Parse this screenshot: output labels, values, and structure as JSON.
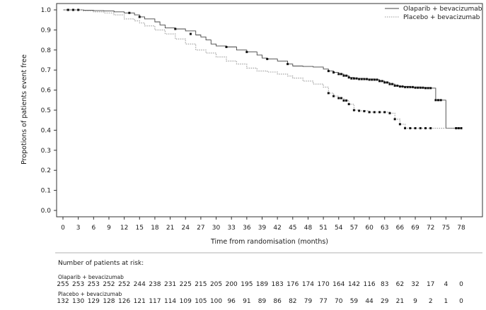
{
  "chart_data": {
    "type": "line",
    "subtype": "kaplan-meier",
    "title": "",
    "xlabel": "Time from randomisation (months)",
    "ylabel": "Propotions of patients event free",
    "xlim": [
      0,
      81
    ],
    "ylim": [
      0,
      1.0
    ],
    "x_ticks": [
      0,
      3,
      6,
      9,
      12,
      15,
      18,
      21,
      24,
      27,
      30,
      33,
      36,
      39,
      42,
      45,
      48,
      51,
      54,
      57,
      60,
      63,
      66,
      69,
      72,
      75,
      78
    ],
    "y_ticks": [
      "0.0",
      "0.1",
      "0.2",
      "0.3",
      "0.4",
      "0.5",
      "0.6",
      "0.7",
      "0.8",
      "0.9",
      "1.0"
    ],
    "legend_position": "top-right",
    "series": [
      {
        "name": "Olaparib + bevacizumab",
        "style": "solid",
        "color": "#444444",
        "points": [
          [
            0,
            1.0
          ],
          [
            2,
            1.0
          ],
          [
            4,
            0.998
          ],
          [
            6,
            0.996
          ],
          [
            8,
            0.995
          ],
          [
            10,
            0.99
          ],
          [
            12,
            0.985
          ],
          [
            14,
            0.975
          ],
          [
            15,
            0.965
          ],
          [
            16,
            0.955
          ],
          [
            18,
            0.94
          ],
          [
            19,
            0.925
          ],
          [
            20,
            0.91
          ],
          [
            22,
            0.905
          ],
          [
            24,
            0.895
          ],
          [
            26,
            0.875
          ],
          [
            27,
            0.865
          ],
          [
            28,
            0.85
          ],
          [
            29,
            0.83
          ],
          [
            30,
            0.82
          ],
          [
            32,
            0.815
          ],
          [
            34,
            0.8
          ],
          [
            36,
            0.79
          ],
          [
            38,
            0.775
          ],
          [
            39,
            0.76
          ],
          [
            40,
            0.755
          ],
          [
            42,
            0.745
          ],
          [
            44,
            0.73
          ],
          [
            45,
            0.72
          ],
          [
            47,
            0.718
          ],
          [
            49,
            0.715
          ],
          [
            51,
            0.705
          ],
          [
            52,
            0.695
          ],
          [
            53,
            0.688
          ],
          [
            54,
            0.68
          ],
          [
            55,
            0.672
          ],
          [
            56,
            0.663
          ],
          [
            57,
            0.658
          ],
          [
            59,
            0.655
          ],
          [
            61,
            0.652
          ],
          [
            62,
            0.645
          ],
          [
            63,
            0.638
          ],
          [
            64,
            0.63
          ],
          [
            65,
            0.622
          ],
          [
            66,
            0.618
          ],
          [
            68,
            0.615
          ],
          [
            70,
            0.612
          ],
          [
            72,
            0.61
          ],
          [
            73,
            0.55
          ],
          [
            74,
            0.55
          ],
          [
            75,
            0.41
          ],
          [
            77,
            0.41
          ],
          [
            78,
            0.41
          ]
        ],
        "censor_marks": [
          [
            1,
            1.0
          ],
          [
            2,
            1.0
          ],
          [
            3,
            1.0
          ],
          [
            13,
            0.985
          ],
          [
            15,
            0.965
          ],
          [
            22,
            0.905
          ],
          [
            25,
            0.88
          ],
          [
            32,
            0.815
          ],
          [
            36,
            0.79
          ],
          [
            40,
            0.755
          ],
          [
            44,
            0.73
          ],
          [
            52,
            0.695
          ],
          [
            53,
            0.688
          ],
          [
            54,
            0.68
          ],
          [
            54.5,
            0.68
          ],
          [
            55,
            0.672
          ],
          [
            55.5,
            0.672
          ],
          [
            56,
            0.663
          ],
          [
            56.5,
            0.658
          ],
          [
            57,
            0.658
          ],
          [
            57.5,
            0.658
          ],
          [
            58,
            0.655
          ],
          [
            58.5,
            0.655
          ],
          [
            59,
            0.655
          ],
          [
            59.5,
            0.655
          ],
          [
            60,
            0.652
          ],
          [
            60.5,
            0.652
          ],
          [
            61,
            0.652
          ],
          [
            61.5,
            0.652
          ],
          [
            62,
            0.645
          ],
          [
            62.5,
            0.645
          ],
          [
            63,
            0.638
          ],
          [
            63.5,
            0.638
          ],
          [
            64,
            0.63
          ],
          [
            64.5,
            0.63
          ],
          [
            65,
            0.622
          ],
          [
            65.5,
            0.622
          ],
          [
            66,
            0.618
          ],
          [
            66.5,
            0.618
          ],
          [
            67,
            0.615
          ],
          [
            67.5,
            0.615
          ],
          [
            68,
            0.615
          ],
          [
            68.5,
            0.615
          ],
          [
            69,
            0.612
          ],
          [
            69.5,
            0.612
          ],
          [
            70,
            0.612
          ],
          [
            70.5,
            0.612
          ],
          [
            71,
            0.61
          ],
          [
            71.5,
            0.61
          ],
          [
            72,
            0.61
          ],
          [
            73,
            0.55
          ],
          [
            73.5,
            0.55
          ],
          [
            74,
            0.55
          ],
          [
            77,
            0.41
          ],
          [
            77.5,
            0.41
          ],
          [
            78,
            0.41
          ]
        ]
      },
      {
        "name": "Placebo + bevacizumab",
        "style": "dotted",
        "color": "#999999",
        "points": [
          [
            0,
            1.0
          ],
          [
            2,
            1.0
          ],
          [
            4,
            0.995
          ],
          [
            6,
            0.99
          ],
          [
            8,
            0.985
          ],
          [
            10,
            0.975
          ],
          [
            12,
            0.955
          ],
          [
            14,
            0.945
          ],
          [
            15,
            0.935
          ],
          [
            16,
            0.92
          ],
          [
            18,
            0.9
          ],
          [
            20,
            0.88
          ],
          [
            22,
            0.855
          ],
          [
            24,
            0.83
          ],
          [
            26,
            0.8
          ],
          [
            28,
            0.785
          ],
          [
            30,
            0.765
          ],
          [
            32,
            0.745
          ],
          [
            34,
            0.73
          ],
          [
            36,
            0.71
          ],
          [
            38,
            0.695
          ],
          [
            40,
            0.69
          ],
          [
            42,
            0.68
          ],
          [
            44,
            0.67
          ],
          [
            45,
            0.66
          ],
          [
            47,
            0.645
          ],
          [
            49,
            0.63
          ],
          [
            51,
            0.615
          ],
          [
            52,
            0.585
          ],
          [
            53,
            0.57
          ],
          [
            54,
            0.56
          ],
          [
            55,
            0.548
          ],
          [
            56,
            0.53
          ],
          [
            57,
            0.5
          ],
          [
            58,
            0.497
          ],
          [
            60,
            0.49
          ],
          [
            62,
            0.49
          ],
          [
            64,
            0.485
          ],
          [
            65,
            0.455
          ],
          [
            66,
            0.43
          ],
          [
            67,
            0.41
          ],
          [
            70,
            0.41
          ],
          [
            72,
            0.41
          ],
          [
            75,
            0.41
          ],
          [
            78,
            0.41
          ]
        ],
        "censor_marks": [
          [
            1,
            1.0
          ],
          [
            2,
            1.0
          ],
          [
            52,
            0.585
          ],
          [
            53,
            0.57
          ],
          [
            54,
            0.56
          ],
          [
            54.5,
            0.56
          ],
          [
            55,
            0.548
          ],
          [
            55.5,
            0.548
          ],
          [
            56,
            0.53
          ],
          [
            57,
            0.5
          ],
          [
            58,
            0.497
          ],
          [
            59,
            0.495
          ],
          [
            60,
            0.49
          ],
          [
            61,
            0.49
          ],
          [
            62,
            0.49
          ],
          [
            63,
            0.49
          ],
          [
            64,
            0.485
          ],
          [
            65,
            0.455
          ],
          [
            66,
            0.43
          ],
          [
            67,
            0.41
          ],
          [
            68,
            0.41
          ],
          [
            69,
            0.41
          ],
          [
            70,
            0.41
          ],
          [
            71,
            0.41
          ],
          [
            72,
            0.41
          ],
          [
            77,
            0.41
          ],
          [
            78,
            0.41
          ]
        ]
      }
    ],
    "risk_table": {
      "title": "Number of patients at risk:",
      "groups": [
        {
          "name": "Olaparib + bevacizumab",
          "values": [
            "255",
            "253",
            "253",
            "252",
            "252",
            "244",
            "238",
            "231",
            "225",
            "215",
            "205",
            "200",
            "195",
            "189",
            "183",
            "176",
            "174",
            "170",
            "164",
            "142",
            "116",
            "83",
            "62",
            "32",
            "17",
            "4",
            "0"
          ]
        },
        {
          "name": "Placebo + bevacizumab",
          "values": [
            "132",
            "130",
            "129",
            "128",
            "126",
            "121",
            "117",
            "114",
            "109",
            "105",
            "100",
            "96",
            "91",
            "89",
            "86",
            "82",
            "79",
            "77",
            "70",
            "59",
            "44",
            "29",
            "21",
            "9",
            "2",
            "1",
            "0"
          ]
        }
      ]
    }
  }
}
